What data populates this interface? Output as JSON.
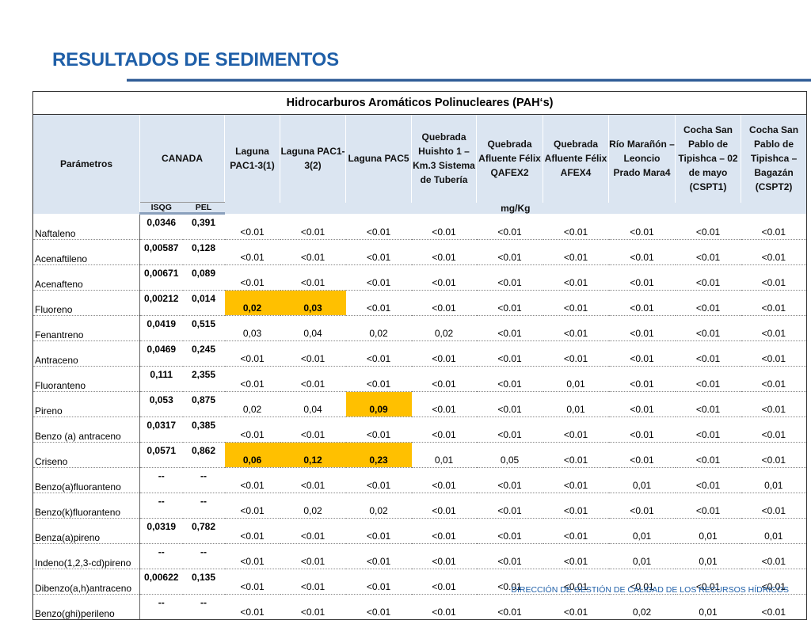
{
  "page": {
    "title": "RESULTADOS DE SEDIMENTOS",
    "footer": "DIRECCIÓN DE GESTIÓN DE CALIDAD DE LOS RECURSOS HÍDRICOS",
    "colors": {
      "title": "#1f5fa8",
      "header_bg": "#dbe5f1",
      "highlight": "#ffc000"
    }
  },
  "table": {
    "super_header": "Hidrocarburos Aromáticos Polinucleares (PAH‘s)",
    "params_header": "Parámetros",
    "canada_header": "CANADA",
    "isqg_header": "ISQG",
    "pel_header": "PEL",
    "units": "mg/Kg",
    "sites": [
      "Laguna PAC1-3(1)",
      "Laguna PAC1-3(2)",
      "Laguna PAC5",
      "Quebrada Huishto 1 – Km.3 Sistema de Tubería",
      "Quebrada Afluente Félix QAFEX2",
      "Quebrada Afluente Félix AFEX4",
      "Río Marañón – Leoncio Prado Mara4",
      "Cocha San Pablo de Tipishca – 02 de mayo (CSPT1)",
      "Cocha San Pablo de Tipishca – Bagazán (CSPT2)"
    ],
    "rows": [
      {
        "param": "Naftaleno",
        "isqg": "0,0346",
        "pel": "0,391",
        "values": [
          "<0.01",
          "<0.01",
          "<0.01",
          "<0.01",
          "<0.01",
          "<0.01",
          "<0.01",
          "<0.01",
          "<0.01"
        ],
        "highlight": []
      },
      {
        "param": "Acenaftileno",
        "isqg": "0,00587",
        "pel": "0,128",
        "values": [
          "<0.01",
          "<0.01",
          "<0.01",
          "<0.01",
          "<0.01",
          "<0.01",
          "<0.01",
          "<0.01",
          "<0.01"
        ],
        "highlight": []
      },
      {
        "param": "Acenafteno",
        "isqg": "0,00671",
        "pel": "0,089",
        "values": [
          "<0.01",
          "<0.01",
          "<0.01",
          "<0.01",
          "<0.01",
          "<0.01",
          "<0.01",
          "<0.01",
          "<0.01"
        ],
        "highlight": []
      },
      {
        "param": "Fluoreno",
        "isqg": "0,00212",
        "pel": "0,014",
        "values": [
          "0,02",
          "0,03",
          "<0.01",
          "<0.01",
          "<0.01",
          "<0.01",
          "<0.01",
          "<0.01",
          "<0.01"
        ],
        "highlight": [
          0,
          1
        ]
      },
      {
        "param": "Fenantreno",
        "isqg": "0,0419",
        "pel": "0,515",
        "values": [
          "0,03",
          "0,04",
          "0,02",
          "0,02",
          "<0.01",
          "<0.01",
          "<0.01",
          "<0.01",
          "<0.01"
        ],
        "highlight": []
      },
      {
        "param": "Antraceno",
        "isqg": "0,0469",
        "pel": "0,245",
        "values": [
          "<0.01",
          "<0.01",
          "<0.01",
          "<0.01",
          "<0.01",
          "<0.01",
          "<0.01",
          "<0.01",
          "<0.01"
        ],
        "highlight": []
      },
      {
        "param": "Fluoranteno",
        "isqg": "0,111",
        "pel": "2,355",
        "values": [
          "<0.01",
          "<0.01",
          "<0.01",
          "<0.01",
          "<0.01",
          "0,01",
          "<0.01",
          "<0.01",
          "<0.01"
        ],
        "highlight": []
      },
      {
        "param": "Pireno",
        "isqg": "0,053",
        "pel": "0,875",
        "values": [
          "0,02",
          "0,04",
          "0,09",
          "<0.01",
          "<0.01",
          "0,01",
          "<0.01",
          "<0.01",
          "<0.01"
        ],
        "highlight": [
          2
        ]
      },
      {
        "param": "Benzo (a) antraceno",
        "isqg": "0,0317",
        "pel": "0,385",
        "values": [
          "<0.01",
          "<0.01",
          "<0.01",
          "<0.01",
          "<0.01",
          "<0.01",
          "<0.01",
          "<0.01",
          "<0.01"
        ],
        "highlight": []
      },
      {
        "param": "Criseno",
        "isqg": "0,0571",
        "pel": "0,862",
        "values": [
          "0,06",
          "0,12",
          "0,23",
          "0,01",
          "0,05",
          "<0.01",
          "<0.01",
          "<0.01",
          "<0.01"
        ],
        "highlight": [
          0,
          1,
          2
        ]
      },
      {
        "param": "Benzo(a)fluoranteno",
        "isqg": "--",
        "pel": "--",
        "values": [
          "<0.01",
          "<0.01",
          "<0.01",
          "<0.01",
          "<0.01",
          "<0.01",
          "0,01",
          "<0.01",
          "0,01"
        ],
        "highlight": []
      },
      {
        "param": "Benzo(k)fluoranteno",
        "isqg": "--",
        "pel": "--",
        "values": [
          "<0.01",
          "0,02",
          "0,02",
          "<0.01",
          "<0.01",
          "<0.01",
          "<0.01",
          "<0.01",
          "<0.01"
        ],
        "highlight": []
      },
      {
        "param": "Benza(a)pireno",
        "isqg": "0,0319",
        "pel": "0,782",
        "values": [
          "<0.01",
          "<0.01",
          "<0.01",
          "<0.01",
          "<0.01",
          "<0.01",
          "0,01",
          "0,01",
          "0,01"
        ],
        "highlight": []
      },
      {
        "param": "Indeno(1,2,3-cd)pireno",
        "isqg": "--",
        "pel": "--",
        "values": [
          "<0.01",
          "<0.01",
          "<0.01",
          "<0.01",
          "<0.01",
          "<0.01",
          "0,01",
          "0,01",
          "<0.01"
        ],
        "highlight": []
      },
      {
        "param": "Dibenzo(a,h)antraceno",
        "isqg": "0,00622",
        "pel": "0,135",
        "values": [
          "<0.01",
          "<0.01",
          "<0.01",
          "<0.01",
          "<0.01",
          "<0.01",
          "<0.01",
          "<0.01",
          "<0.01"
        ],
        "highlight": []
      },
      {
        "param": "Benzo(ghi)perileno",
        "isqg": "--",
        "pel": "--",
        "values": [
          "<0.01",
          "<0.01",
          "<0.01",
          "<0.01",
          "<0.01",
          "<0.01",
          "0,02",
          "0,01",
          "<0.01"
        ],
        "highlight": []
      }
    ]
  }
}
